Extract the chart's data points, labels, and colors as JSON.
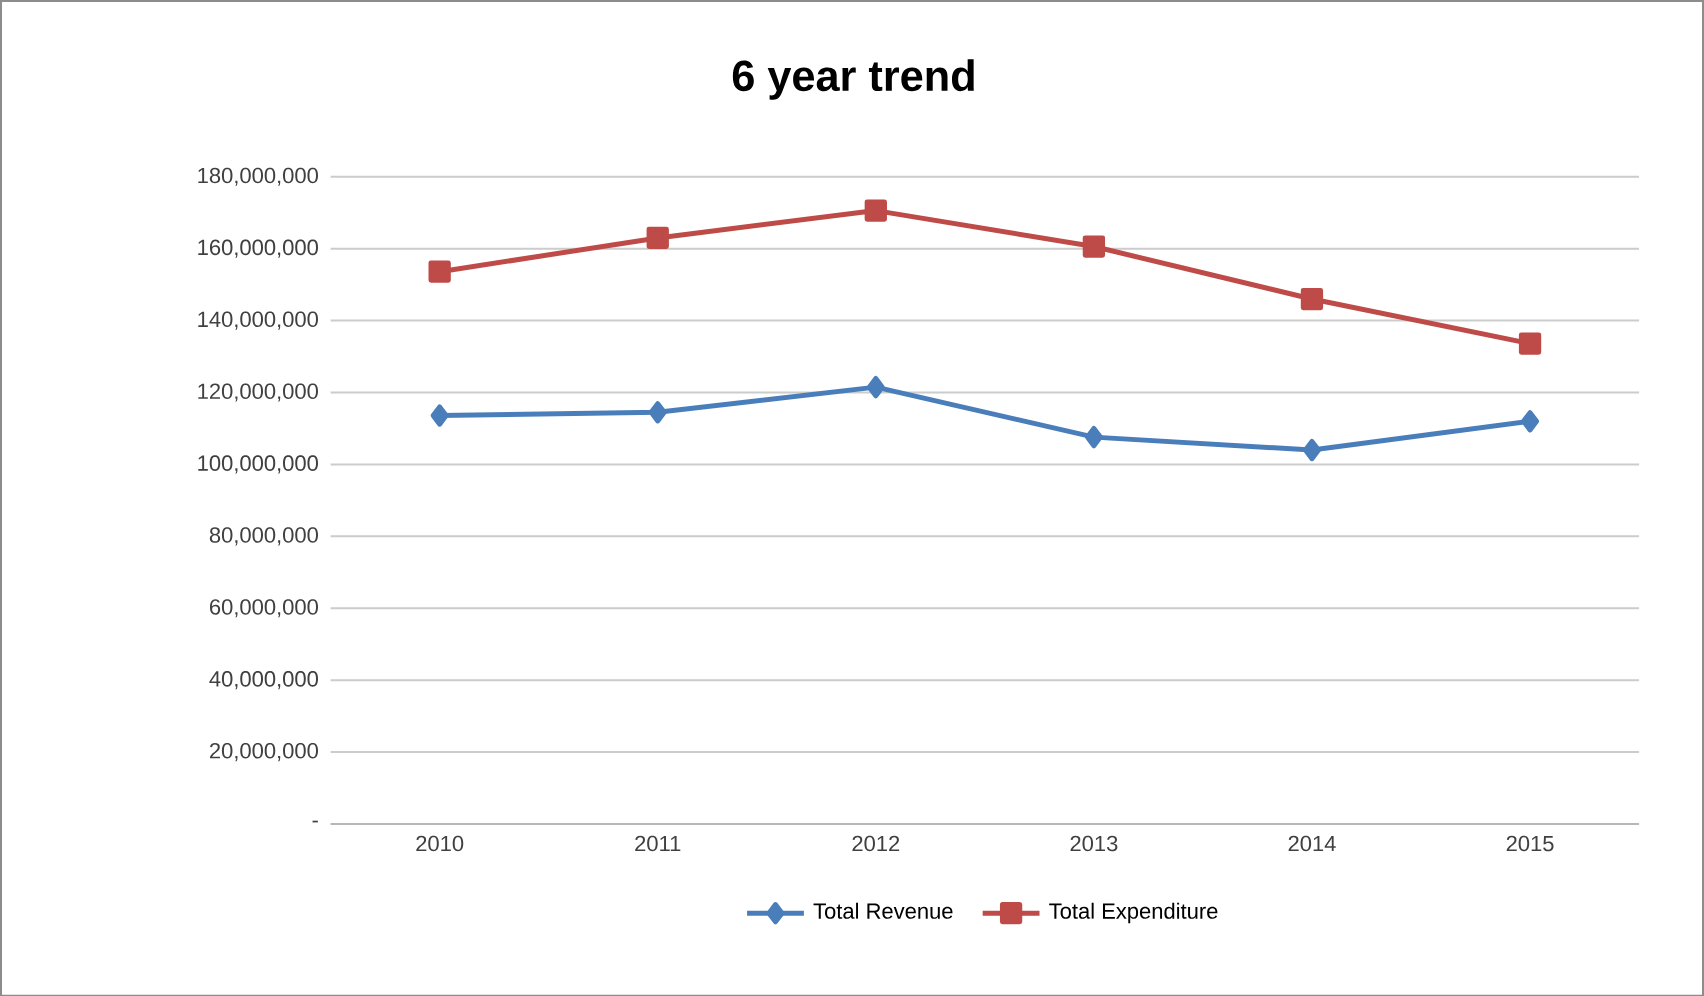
{
  "chart_data": {
    "type": "line",
    "title": "6 year trend",
    "categories": [
      "2010",
      "2011",
      "2012",
      "2013",
      "2014",
      "2015"
    ],
    "series": [
      {
        "name": "Total Revenue",
        "color": "#4a7ebb",
        "marker": "diamond",
        "values": [
          113600000,
          114500000,
          121500000,
          107600000,
          104000000,
          112000000
        ]
      },
      {
        "name": "Total Expenditure",
        "color": "#be4b48",
        "marker": "square",
        "values": [
          153600000,
          163000000,
          170600000,
          160600000,
          146000000,
          133600000
        ]
      }
    ],
    "ylim": [
      0,
      180000000
    ],
    "yticks": [
      {
        "value": 0,
        "label": "-"
      },
      {
        "value": 20000000,
        "label": "20,000,000"
      },
      {
        "value": 40000000,
        "label": "40,000,000"
      },
      {
        "value": 60000000,
        "label": "60,000,000"
      },
      {
        "value": 80000000,
        "label": "80,000,000"
      },
      {
        "value": 100000000,
        "label": "100,000,000"
      },
      {
        "value": 120000000,
        "label": "120,000,000"
      },
      {
        "value": 140000000,
        "label": "140,000,000"
      },
      {
        "value": 160000000,
        "label": "160,000,000"
      },
      {
        "value": 180000000,
        "label": "180,000,000"
      }
    ],
    "grid": "y",
    "legend": "bottom",
    "line_style": "solid"
  }
}
